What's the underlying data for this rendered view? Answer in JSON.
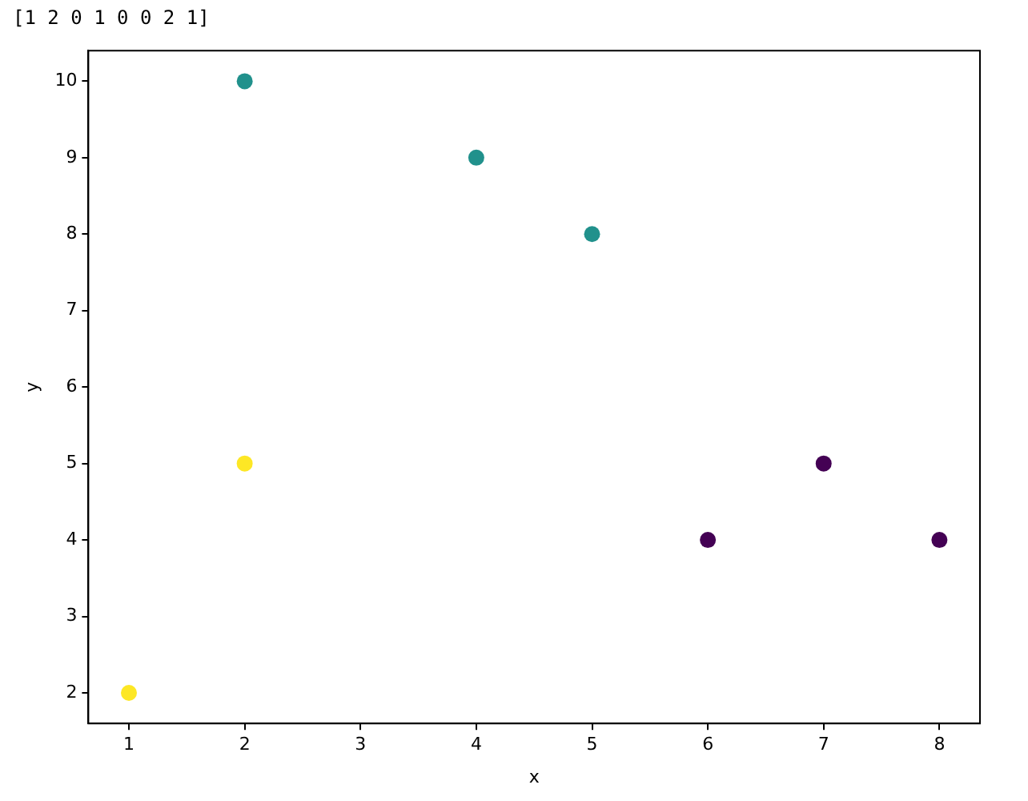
{
  "chart_data": {
    "type": "scatter",
    "xlabel": "x",
    "ylabel": "y",
    "annotations": [
      "[1 2 0 1 0 0 2 1]"
    ],
    "x": [
      1,
      2,
      2,
      4,
      5,
      6,
      7,
      8
    ],
    "values": [
      2,
      5,
      10,
      9,
      8,
      4,
      5,
      4
    ],
    "colors": [
      "#fde725",
      "#fde725",
      "#21918c",
      "#21918c",
      "#21918c",
      "#440154",
      "#440154",
      "#440154"
    ],
    "xlim": [
      0.65,
      8.35
    ],
    "ylim": [
      1.6,
      10.4
    ],
    "xticks": [
      1,
      2,
      3,
      4,
      5,
      6,
      7,
      8
    ],
    "yticks": [
      2,
      3,
      4,
      5,
      6,
      7,
      8,
      9,
      10
    ],
    "marker": "circle",
    "grid": false,
    "legend": false
  }
}
